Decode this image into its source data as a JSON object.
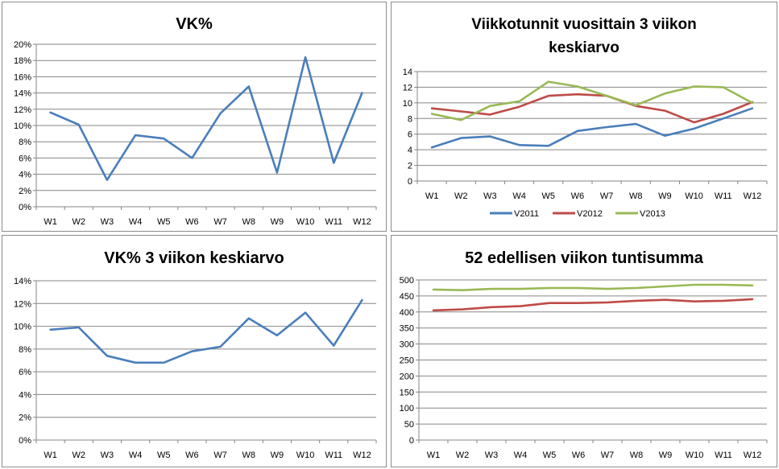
{
  "colors": {
    "v2011": "#4a7ebb",
    "v2012": "#be4b48",
    "v2013": "#98b954",
    "grid": "#868686",
    "axis": "#868686"
  },
  "chart_data": [
    {
      "type": "line",
      "title": "VK%",
      "categories": [
        "W1",
        "W2",
        "W3",
        "W4",
        "W5",
        "W6",
        "W7",
        "W8",
        "W9",
        "W10",
        "W11",
        "W12"
      ],
      "yticks": [
        "0%",
        "2%",
        "4%",
        "6%",
        "8%",
        "10%",
        "12%",
        "14%",
        "16%",
        "18%",
        "20%"
      ],
      "ylim": [
        0,
        0.2
      ],
      "grid": true,
      "series": [
        {
          "values": [
            0.116,
            0.101,
            0.033,
            0.088,
            0.084,
            0.06,
            0.115,
            0.148,
            0.042,
            0.184,
            0.054,
            0.14
          ]
        }
      ]
    },
    {
      "type": "line",
      "title": "Viikkotunnit vuosittain 3 viikon keskiarvo",
      "title_lines": [
        "Viikkotunnit vuosittain 3 viikon",
        "keskiarvo"
      ],
      "categories": [
        "W1",
        "W2",
        "W3",
        "W4",
        "W5",
        "W6",
        "W7",
        "W8",
        "W9",
        "W10",
        "W11",
        "W12"
      ],
      "yticks": [
        "0",
        "2",
        "4",
        "6",
        "8",
        "10",
        "12",
        "14"
      ],
      "ylim": [
        0,
        14
      ],
      "grid": true,
      "legend": "bottom",
      "series": [
        {
          "name": "V2011",
          "values": [
            4.3,
            5.5,
            5.7,
            4.6,
            4.5,
            6.4,
            6.9,
            7.3,
            5.8,
            6.7,
            8.0,
            9.3
          ]
        },
        {
          "name": "V2012",
          "values": [
            9.3,
            8.9,
            8.5,
            9.5,
            10.9,
            11.1,
            10.9,
            9.6,
            9.0,
            7.5,
            8.6,
            10.1
          ]
        },
        {
          "name": "V2013",
          "values": [
            8.6,
            7.8,
            9.6,
            10.2,
            12.7,
            12.1,
            10.9,
            9.7,
            11.2,
            12.1,
            12.0,
            10.0
          ]
        }
      ]
    },
    {
      "type": "line",
      "title": "VK% 3 viikon keskiarvo",
      "categories": [
        "W1",
        "W2",
        "W3",
        "W4",
        "W5",
        "W6",
        "W7",
        "W8",
        "W9",
        "W10",
        "W11",
        "W12"
      ],
      "yticks": [
        "0%",
        "2%",
        "4%",
        "6%",
        "8%",
        "10%",
        "12%",
        "14%"
      ],
      "ylim": [
        0,
        0.14
      ],
      "grid": true,
      "series": [
        {
          "values": [
            0.097,
            0.099,
            0.074,
            0.068,
            0.068,
            0.078,
            0.082,
            0.107,
            0.092,
            0.112,
            0.083,
            0.123
          ]
        }
      ]
    },
    {
      "type": "line",
      "title": "52 edellisen viikon tuntisumma",
      "categories": [
        "W1",
        "W2",
        "W3",
        "W4",
        "W5",
        "W6",
        "W7",
        "W8",
        "W9",
        "W10",
        "W11",
        "W12"
      ],
      "yticks": [
        "0",
        "50",
        "100",
        "150",
        "200",
        "250",
        "300",
        "350",
        "400",
        "450",
        "500"
      ],
      "ylim": [
        0,
        500
      ],
      "grid": true,
      "series": [
        {
          "values": [
            405,
            408,
            415,
            418,
            428,
            428,
            430,
            435,
            438,
            433,
            435,
            440
          ]
        },
        {
          "values": [
            470,
            468,
            472,
            472,
            475,
            475,
            472,
            475,
            480,
            485,
            485,
            483
          ]
        }
      ]
    }
  ]
}
